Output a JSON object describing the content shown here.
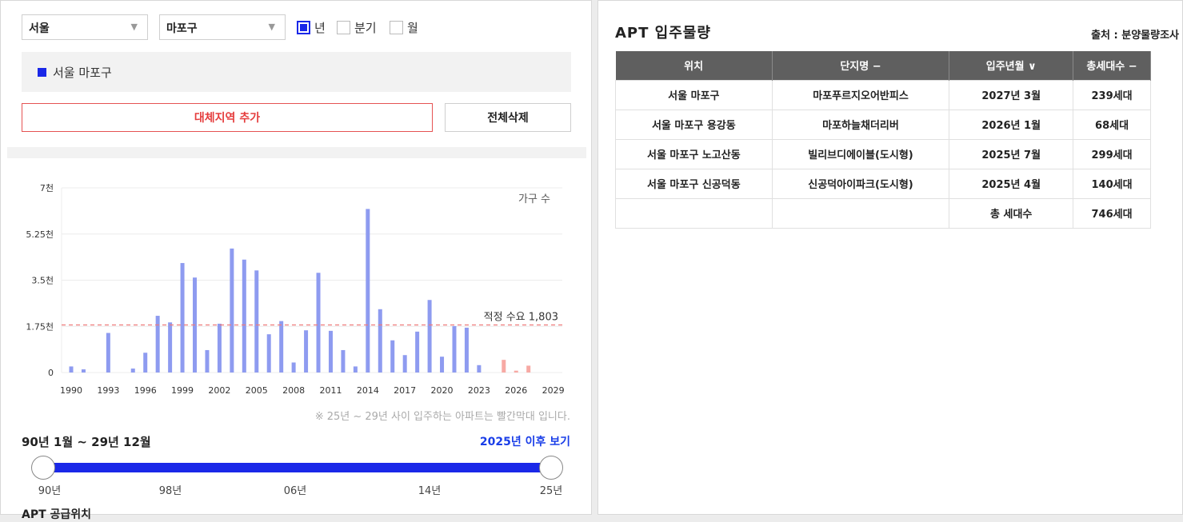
{
  "filters": {
    "city": "서울",
    "district": "마포구",
    "periods": [
      {
        "label": "년",
        "checked": true
      },
      {
        "label": "분기",
        "checked": false
      },
      {
        "label": "월",
        "checked": false
      }
    ]
  },
  "selected_region": "서울 마포구",
  "buttons": {
    "add_region": "대체지역 추가",
    "delete_all": "전체삭제"
  },
  "colors": {
    "accent": "#1a28e8",
    "bar": "#8e9bf0",
    "future_bar": "#f7a9a4",
    "demand_line": "#ef7a7a",
    "add_border": "#e55353",
    "link": "#1a3ee8"
  },
  "chart_data": {
    "type": "bar",
    "ylabel": "가구 수",
    "ylim": [
      0,
      7000
    ],
    "y_ticks": [
      "0",
      "1.75천",
      "3.5천",
      "5.25천",
      "7천"
    ],
    "x_ticks": [
      "1990",
      "1993",
      "1996",
      "1999",
      "2002",
      "2005",
      "2008",
      "2011",
      "2014",
      "2017",
      "2020",
      "2023",
      "2026",
      "2029"
    ],
    "years": [
      1990,
      1991,
      1992,
      1993,
      1994,
      1995,
      1996,
      1997,
      1998,
      1999,
      2000,
      2001,
      2002,
      2003,
      2004,
      2005,
      2006,
      2007,
      2008,
      2009,
      2010,
      2011,
      2012,
      2013,
      2014,
      2015,
      2016,
      2017,
      2018,
      2019,
      2020,
      2021,
      2022,
      2023,
      2024,
      2025,
      2026,
      2027,
      2028,
      2029
    ],
    "values": [
      230,
      120,
      0,
      1500,
      0,
      150,
      750,
      2150,
      1900,
      4150,
      3600,
      850,
      1850,
      4700,
      4280,
      3870,
      1450,
      1950,
      380,
      1600,
      3780,
      1580,
      850,
      230,
      6200,
      2400,
      1220,
      660,
      1550,
      2750,
      600,
      1760,
      1700,
      280,
      0,
      480,
      70,
      260,
      0,
      0
    ],
    "future_from": 2024,
    "demand_label": "적정 수요 1,803",
    "demand_value": 1803,
    "grid": true
  },
  "chart_note": "※ 25년 ~ 29년 사이 입주하는 아파트는 빨간막대 입니다.",
  "range": {
    "label": "90년 1월 ~ 29년 12월",
    "after_link": "2025년 이후 보기",
    "ticks": [
      "90년",
      "98년",
      "06년",
      "14년",
      "25년"
    ]
  },
  "supply_location_title": "APT 공급위치",
  "right": {
    "title": "APT 입주물량",
    "source": "출처 : 분양물량조사",
    "headers": [
      "위치",
      "단지명 −",
      "입주년월 ∨",
      "총세대수 −"
    ],
    "rows": [
      [
        "서울 마포구",
        "마포푸르지오어반피스",
        "2027년 3월",
        "239세대"
      ],
      [
        "서울 마포구 용강동",
        "마포하늘채더리버",
        "2026년 1월",
        "68세대"
      ],
      [
        "서울 마포구 노고산동",
        "빌리브디에이블(도시형)",
        "2025년 7월",
        "299세대"
      ],
      [
        "서울 마포구 신공덕동",
        "신공덕아이파크(도시형)",
        "2025년 4월",
        "140세대"
      ]
    ],
    "total_label": "총 세대수",
    "total_value": "746세대"
  }
}
